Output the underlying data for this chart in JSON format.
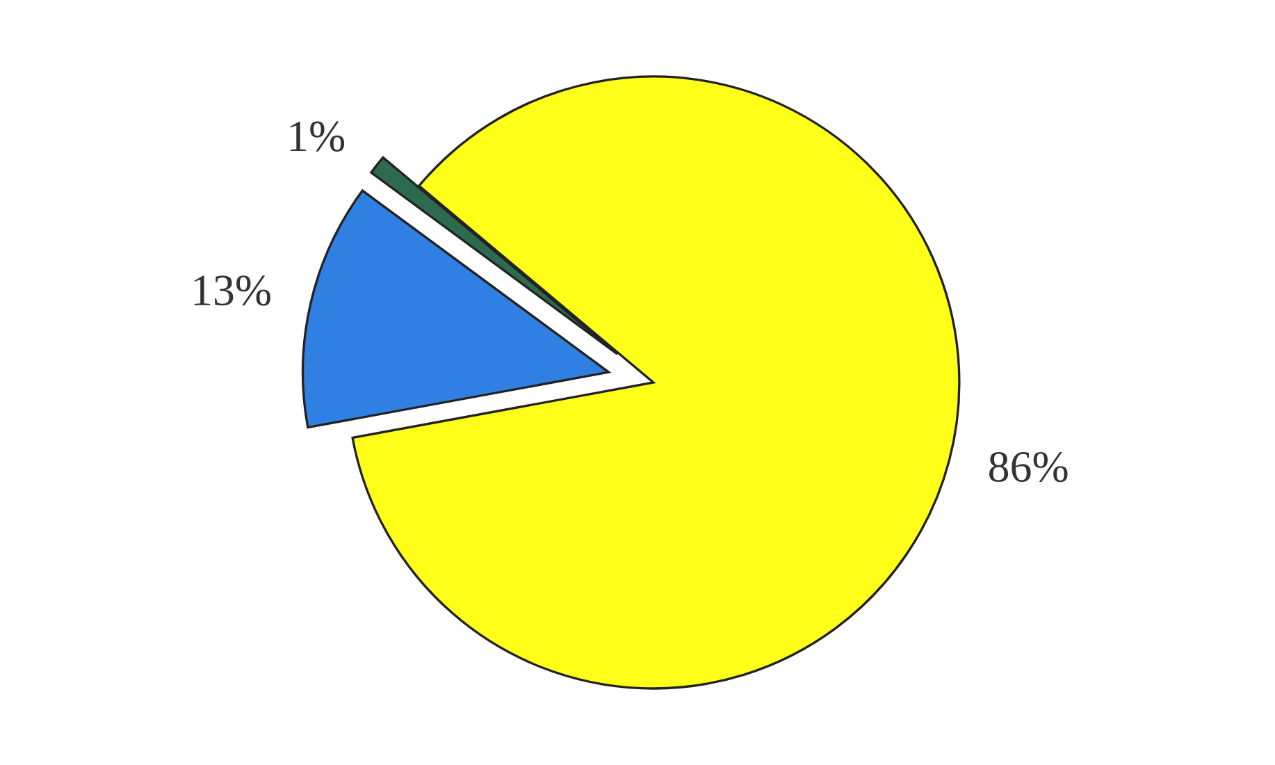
{
  "chart_data": {
    "type": "pie",
    "categories": [
      null,
      null,
      null
    ],
    "values": [
      86,
      13,
      1
    ],
    "colors": [
      "#ffff1a",
      "#2f80e2",
      "#2d6b4f"
    ],
    "value_labels": [
      "86%",
      "13%",
      "1%"
    ]
  }
}
